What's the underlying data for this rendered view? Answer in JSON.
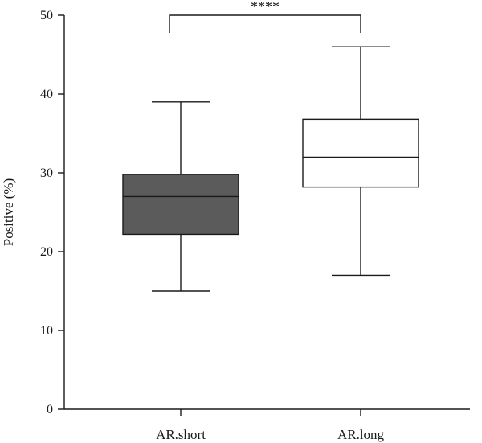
{
  "chart_data": {
    "type": "boxplot",
    "ylabel": "Positive (%)",
    "xlabel": "",
    "ylim": [
      0,
      50
    ],
    "yticks": [
      0,
      10,
      20,
      30,
      40,
      50
    ],
    "categories": [
      "AR.short",
      "AR.long"
    ],
    "boxes": [
      {
        "category": "AR.short",
        "min": 15,
        "q1": 22.2,
        "median": 27,
        "q3": 29.8,
        "max": 39,
        "fill": "#5b5b5b"
      },
      {
        "category": "AR.long",
        "min": 17,
        "q1": 28.2,
        "median": 32,
        "q3": 36.8,
        "max": 46,
        "fill": "#ffffff"
      }
    ],
    "significance": {
      "label": "****",
      "between": [
        "AR.short",
        "AR.long"
      ]
    },
    "grid": false
  }
}
